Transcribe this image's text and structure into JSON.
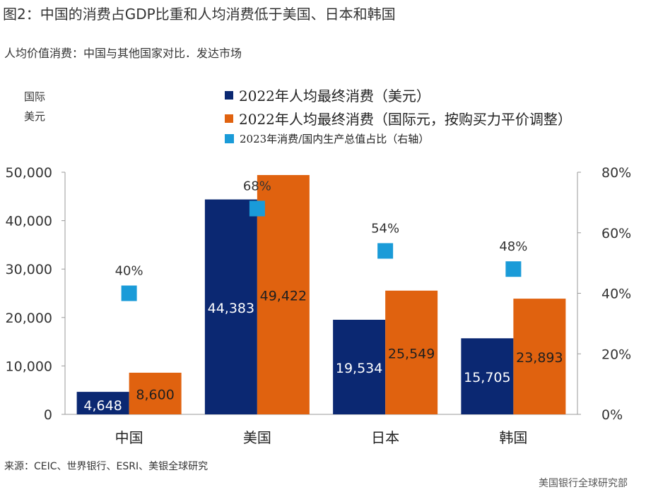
{
  "title": "图2：中国的消费占GDP比重和人均消费低于美国、日本和韩国",
  "subtitle": "人均价值消费：中国与其他国家对比．发达市场",
  "y_unit_line1": "国际",
  "y_unit_line2": "美元",
  "source": "来源：CEIC、世界银行、ESRI、美银全球研究",
  "credit": "美国银行全球研究部",
  "colors": {
    "navy": "#0b2872",
    "orange": "#e0620f",
    "marker": "#1a9bd8",
    "axis": "#9a9a9a"
  },
  "chart_data": {
    "type": "bar",
    "categories": [
      "中国",
      "美国",
      "日本",
      "韩国"
    ],
    "series": [
      {
        "name": "2022年人均最终消费（美元）",
        "values": [
          4648,
          44383,
          19534,
          15705
        ],
        "labels": [
          "4,648",
          "44,383",
          "19,534",
          "15,705"
        ],
        "color": "#0b2872",
        "axis": "left"
      },
      {
        "name": "2022年人均最终消费（国际元，按购买力平价调整）",
        "values": [
          8600,
          49422,
          25549,
          23893
        ],
        "labels": [
          "8,600",
          "49,422",
          "25,549",
          "23,893"
        ],
        "color": "#e0620f",
        "axis": "left"
      },
      {
        "name": "2023年消费/国内生产总值占比（右轴）",
        "type": "scatter",
        "values": [
          40,
          68,
          54,
          48
        ],
        "labels": [
          "40%",
          "68%",
          "54%",
          "48%"
        ],
        "color": "#1a9bd8",
        "axis": "right"
      }
    ],
    "y_left": {
      "min": 0,
      "max": 50000,
      "ticks": [
        0,
        10000,
        20000,
        30000,
        40000,
        50000
      ],
      "tick_labels": [
        "0",
        "10,000",
        "20,000",
        "30,000",
        "40,000",
        "50,000"
      ]
    },
    "y_right": {
      "min": 0,
      "max": 80,
      "ticks": [
        0,
        20,
        40,
        60,
        80
      ],
      "tick_labels": [
        "0%",
        "20%",
        "40%",
        "60%",
        "80%"
      ]
    },
    "legend_position": "top"
  }
}
